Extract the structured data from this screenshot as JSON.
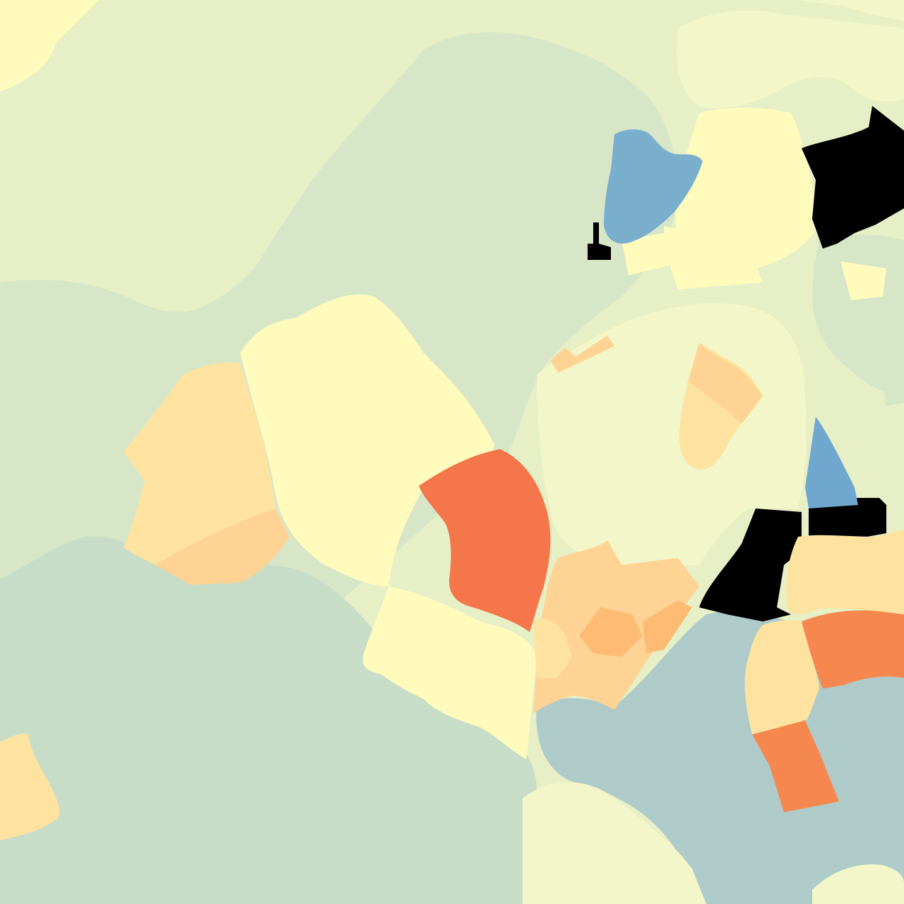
{
  "map": {
    "type": "choropleth",
    "palette": {
      "red": "#f4764a",
      "orange_red": "#f6874f",
      "orange": "#fdbb74",
      "light_orange": "#fed393",
      "pale_orange": "#fee3a0",
      "pale_yellow": "#fefbbd",
      "light_yellow_green": "#f2f6c8",
      "yellow_green": "#e6efc6",
      "grey_green": "#d8e6c8",
      "sage": "#c8ddc7",
      "teal_grey": "#aecbc9",
      "blue": "#7aaecd",
      "steel_blue": "#6fa7cf",
      "no_data": "#000000"
    }
  }
}
